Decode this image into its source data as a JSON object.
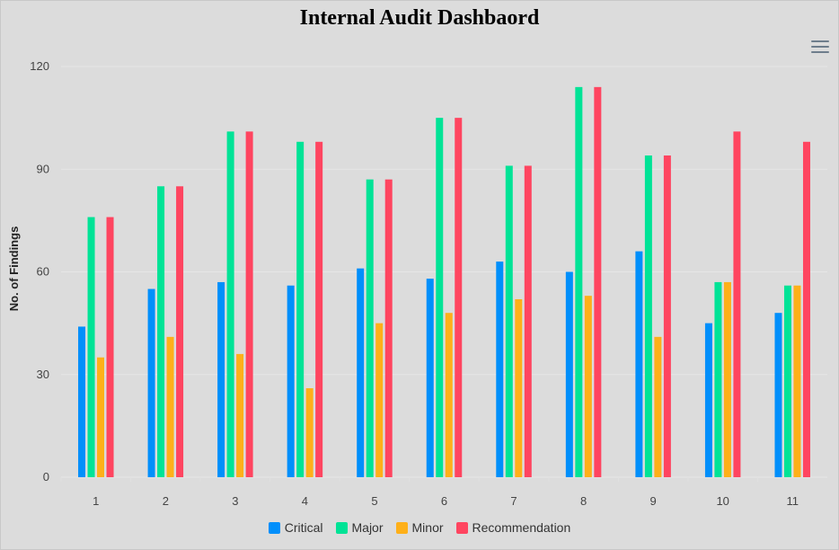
{
  "chart_data": {
    "type": "bar",
    "title": "Internal Audit Dashbaord",
    "xlabel": "",
    "ylabel": "No. of Findings",
    "ylim": [
      0,
      120
    ],
    "yticks": [
      0,
      30,
      60,
      90,
      120
    ],
    "grid": true,
    "legend_position": "bottom",
    "categories": [
      "1",
      "2",
      "3",
      "4",
      "5",
      "6",
      "7",
      "8",
      "9",
      "10",
      "11"
    ],
    "series": [
      {
        "name": "Critical",
        "color": "#008ffb",
        "values": [
          44,
          55,
          57,
          56,
          61,
          58,
          63,
          60,
          66,
          45,
          48
        ]
      },
      {
        "name": "Major",
        "color": "#00e396",
        "values": [
          76,
          85,
          101,
          98,
          87,
          105,
          91,
          114,
          94,
          57,
          56
        ]
      },
      {
        "name": "Minor",
        "color": "#feb019",
        "values": [
          35,
          41,
          36,
          26,
          45,
          48,
          52,
          53,
          41,
          57,
          56
        ]
      },
      {
        "name": "Recommendation",
        "color": "#ff4560",
        "values": [
          76,
          85,
          101,
          98,
          87,
          105,
          91,
          114,
          94,
          101,
          98
        ]
      }
    ]
  },
  "toolbar": {
    "menu_icon": "hamburger-menu-icon"
  }
}
